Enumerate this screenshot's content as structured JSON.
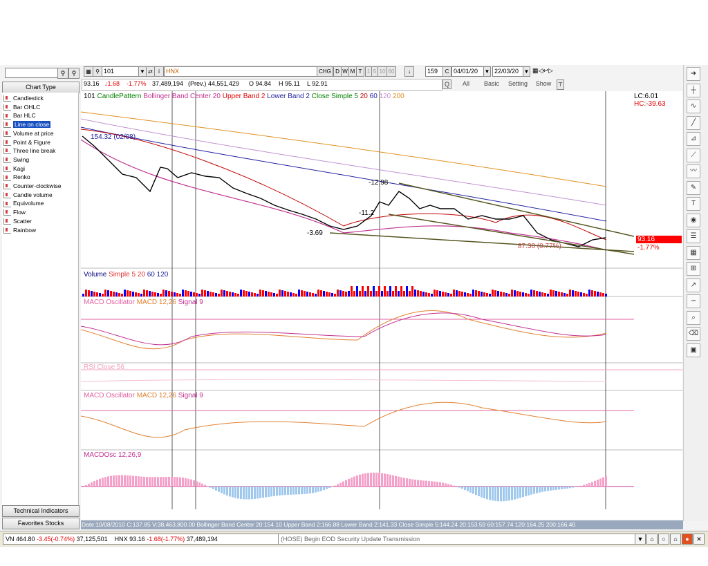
{
  "left_panel": {
    "search_value": "",
    "header": "Chart Type",
    "items": [
      "Candlestick",
      "Bar OHLC",
      "Bar HLC",
      "Line on close",
      "Volume at price",
      "Point & Figure",
      "Three line break",
      "Swing",
      "Kagi",
      "Renko",
      "Counter-clockwise",
      "Candle volume",
      "Equivolume",
      "Flow",
      "Scatter",
      "Rainbow"
    ],
    "selected_index": 3,
    "tech_indicators": "Technical Indicators",
    "favorites": "Favorites Stocks"
  },
  "toolbar": {
    "code": "101",
    "symbol": "HNX",
    "chg": "CHG",
    "periods": [
      "D",
      "W",
      "M",
      "T"
    ],
    "minutes": [
      "1",
      "5",
      "10",
      "60"
    ],
    "bars": "159",
    "c_label": "C",
    "date_from": "04/01/20",
    "date_to": "22/03/20"
  },
  "quote_bar": {
    "last": "93.16",
    "change": "↓1.68",
    "pct": "-1.77%",
    "volume": "37,489,194",
    "prev": "(Prev.) 44,551,429",
    "open": "O 94.84",
    "high": "H 95.11",
    "low": "L 92.91",
    "q": "Q",
    "tabs": [
      "All",
      "Basic",
      "Setting",
      "Show"
    ]
  },
  "price_panel": {
    "legend": [
      {
        "text": "101",
        "color": "#000000"
      },
      {
        "text": "CandlePattern",
        "color": "#008000"
      },
      {
        "text": "Bollinger Band Center 20",
        "color": "#c03090"
      },
      {
        "text": "Upper Band 2",
        "color": "#e00000"
      },
      {
        "text": "Lower Band 2",
        "color": "#2020a0"
      },
      {
        "text": "Close Simple 5",
        "color": "#008000"
      },
      {
        "text": "20",
        "color": "#c00000"
      },
      {
        "text": "60",
        "color": "#2020a0"
      },
      {
        "text": "120",
        "color": "#c090d0"
      },
      {
        "text": "200",
        "color": "#e09020"
      }
    ],
    "lc": "LC:6.01",
    "hc": "HC:-39.63",
    "annotations": [
      "154.32 (02/08)",
      "-12.98",
      "-11.2",
      "-3.69",
      "87.30 (0.77%)"
    ],
    "current_price": "93.16",
    "current_change": "-1.77%"
  },
  "volume_panel": {
    "legend": [
      {
        "text": "Volume",
        "color": "#000080"
      },
      {
        "text": "Simple 5",
        "color": "#e03030"
      },
      {
        "text": "20",
        "color": "#e03030"
      },
      {
        "text": "60",
        "color": "#2020a0"
      },
      {
        "text": "120",
        "color": "#2020a0"
      }
    ]
  },
  "macd_panel": {
    "legend": [
      {
        "text": "MACD Oscillator",
        "color": "#e060a0"
      },
      {
        "text": "MACD 12,26",
        "color": "#e08030"
      },
      {
        "text": "Signal 9",
        "color": "#c03090"
      }
    ]
  },
  "rsi_panel": {
    "legend": [
      {
        "text": "RSI Close 56",
        "color": "#f0a0c0"
      }
    ]
  },
  "macd_panel2": {
    "legend": [
      {
        "text": "MACD Oscillator",
        "color": "#e060a0"
      },
      {
        "text": "MACD 12,26",
        "color": "#e08030"
      },
      {
        "text": "Signal 9",
        "color": "#c03090"
      }
    ]
  },
  "macdosc_panel": {
    "legend": [
      {
        "text": "MACDOsc 12,26,9",
        "color": "#c03090"
      }
    ]
  },
  "status_bar": "Date:10/08/2010  C:137.85  V:38,463,800.00  Bollinger Band Center 20:154.10  Upper Band 2:166.88  Lower Band 2:141.33  Close Simple 5:144.24  20:153.59  60:157.74  120:164.25  200:166.40",
  "bottom_bar": {
    "ticker_vn": "VN 464.80",
    "ticker_vn_chg": "-3.45(-0.74%)",
    "ticker_vn_vol": "37,125,501",
    "ticker_hnx": "HNX 93.16",
    "ticker_hnx_chg": "-1.68(-1.77%)",
    "ticker_hnx_vol": "37,489,194",
    "message": "(HOSE) Begin EOD Security Update Transmission"
  },
  "colors": {
    "up": "#ff0000",
    "down": "#0000ff",
    "price_line": "#000000",
    "status_bg": "#99a8bc"
  }
}
